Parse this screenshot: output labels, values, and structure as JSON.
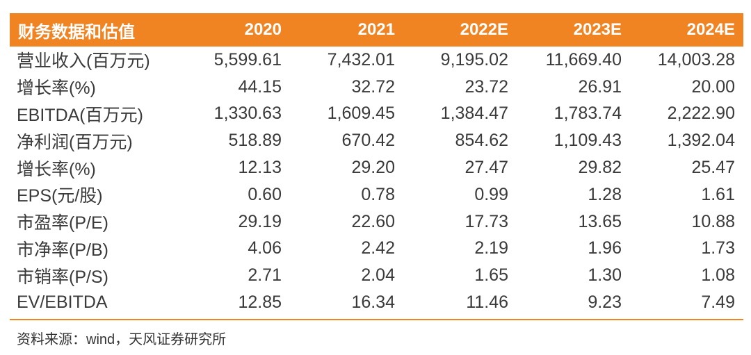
{
  "header": {
    "label": "财务数据和估值",
    "years": [
      "2020",
      "2021",
      "2022E",
      "2023E",
      "2024E"
    ]
  },
  "rows": [
    {
      "label": "营业收入(百万元)",
      "values": [
        "5,599.61",
        "7,432.01",
        "9,195.02",
        "11,669.40",
        "14,003.28"
      ]
    },
    {
      "label": "增长率(%)",
      "values": [
        "44.15",
        "32.72",
        "23.72",
        "26.91",
        "20.00"
      ]
    },
    {
      "label": "EBITDA(百万元)",
      "values": [
        "1,330.63",
        "1,609.45",
        "1,384.47",
        "1,783.74",
        "2,222.90"
      ]
    },
    {
      "label": "净利润(百万元)",
      "values": [
        "518.89",
        "670.42",
        "854.62",
        "1,109.43",
        "1,392.04"
      ]
    },
    {
      "label": "增长率(%)",
      "values": [
        "12.13",
        "29.20",
        "27.47",
        "29.82",
        "25.47"
      ]
    },
    {
      "label": "EPS(元/股)",
      "values": [
        "0.60",
        "0.78",
        "0.99",
        "1.28",
        "1.61"
      ]
    },
    {
      "label": "市盈率(P/E)",
      "values": [
        "29.19",
        "22.60",
        "17.73",
        "13.65",
        "10.88"
      ]
    },
    {
      "label": "市净率(P/B)",
      "values": [
        "4.06",
        "2.42",
        "2.19",
        "1.96",
        "1.73"
      ]
    },
    {
      "label": "市销率(P/S)",
      "values": [
        "2.71",
        "2.04",
        "1.65",
        "1.30",
        "1.08"
      ]
    },
    {
      "label": "EV/EBITDA",
      "values": [
        "12.85",
        "16.34",
        "11.46",
        "9.23",
        "7.49"
      ]
    }
  ],
  "source": "资料来源：wind，天风证券研究所",
  "colors": {
    "accent": "#f08422",
    "header_text": "#ffffff",
    "body_text": "#3a3a3a"
  }
}
